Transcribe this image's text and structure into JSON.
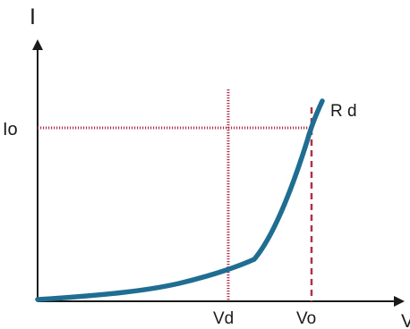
{
  "diagram": {
    "axis_labels": {
      "y": "I",
      "x": "V"
    },
    "tick_labels": {
      "io": "Io",
      "vd": "Vd",
      "vo": "Vo"
    },
    "curve_label": "R d",
    "colors": {
      "axis": "#1a1a1a",
      "curve": "#1f6e92",
      "dotted_guides": "#b0304a",
      "dashed_guide": "#b0304a"
    }
  }
}
